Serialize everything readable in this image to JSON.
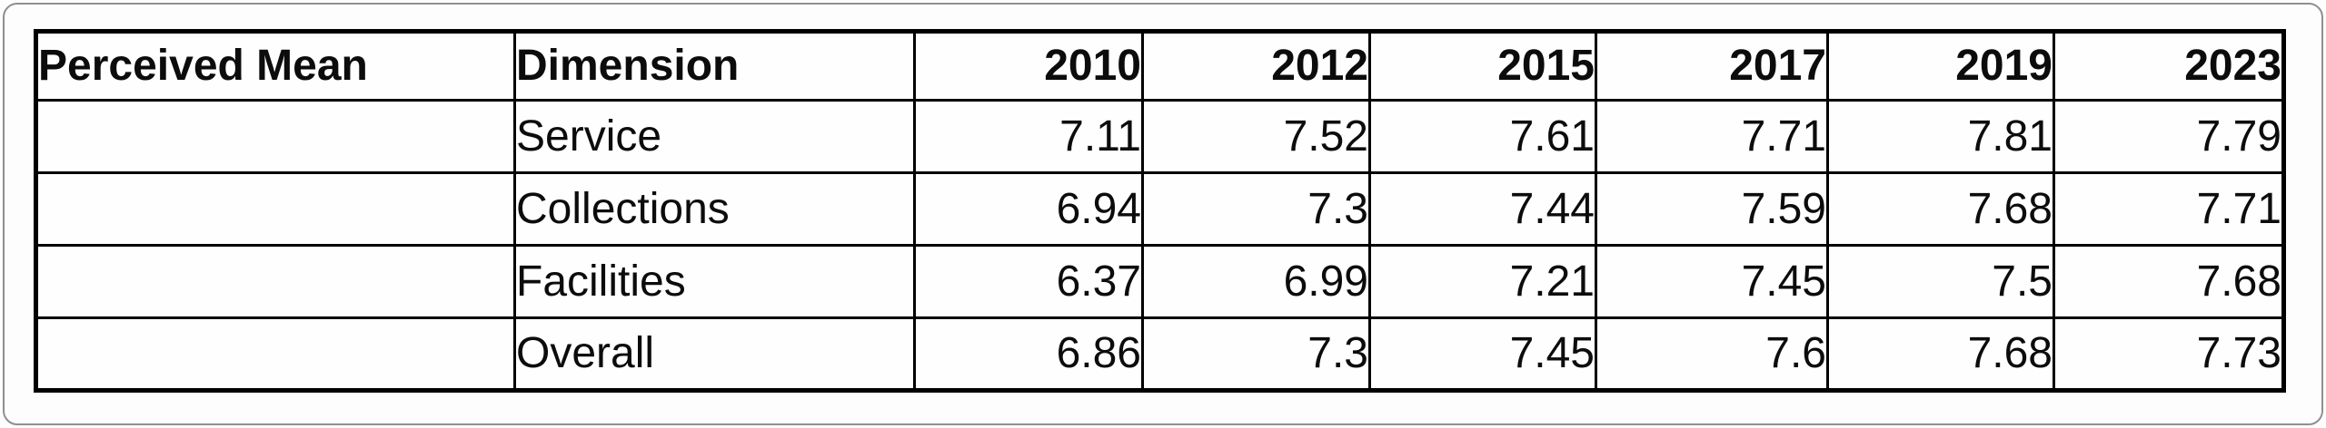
{
  "colors": {
    "table_border": "#000000",
    "background": "#fdfdfd",
    "frame_border": "#8f8f8f",
    "text": "#0c0c0c"
  },
  "table": {
    "header": {
      "perceived_mean": "Perceived Mean",
      "dimension": "Dimension",
      "years": [
        "2010",
        "2012",
        "2015",
        "2017",
        "2019",
        "2023"
      ]
    },
    "rows": [
      {
        "perceived_mean": "",
        "dimension": "Service",
        "values": [
          "7.11",
          "7.52",
          "7.61",
          "7.71",
          "7.81",
          "7.79"
        ]
      },
      {
        "perceived_mean": "",
        "dimension": "Collections",
        "values": [
          "6.94",
          "7.3",
          "7.44",
          "7.59",
          "7.68",
          "7.71"
        ]
      },
      {
        "perceived_mean": "",
        "dimension": "Facilities",
        "values": [
          "6.37",
          "6.99",
          "7.21",
          "7.45",
          "7.5",
          "7.68"
        ]
      },
      {
        "perceived_mean": "",
        "dimension": "Overall",
        "values": [
          "6.86",
          "7.3",
          "7.45",
          "7.6",
          "7.68",
          "7.73"
        ]
      }
    ]
  },
  "chart_data": {
    "type": "table",
    "title": "Perceived Mean",
    "columns": [
      "Perceived Mean",
      "Dimension",
      "2010",
      "2012",
      "2015",
      "2017",
      "2019",
      "2023"
    ],
    "categories": [
      "2010",
      "2012",
      "2015",
      "2017",
      "2019",
      "2023"
    ],
    "series": [
      {
        "name": "Service",
        "values": [
          7.11,
          7.52,
          7.61,
          7.71,
          7.81,
          7.79
        ]
      },
      {
        "name": "Collections",
        "values": [
          6.94,
          7.3,
          7.44,
          7.59,
          7.68,
          7.71
        ]
      },
      {
        "name": "Facilities",
        "values": [
          6.37,
          6.99,
          7.21,
          7.45,
          7.5,
          7.68
        ]
      },
      {
        "name": "Overall",
        "values": [
          6.86,
          7.3,
          7.45,
          7.6,
          7.68,
          7.73
        ]
      }
    ]
  }
}
